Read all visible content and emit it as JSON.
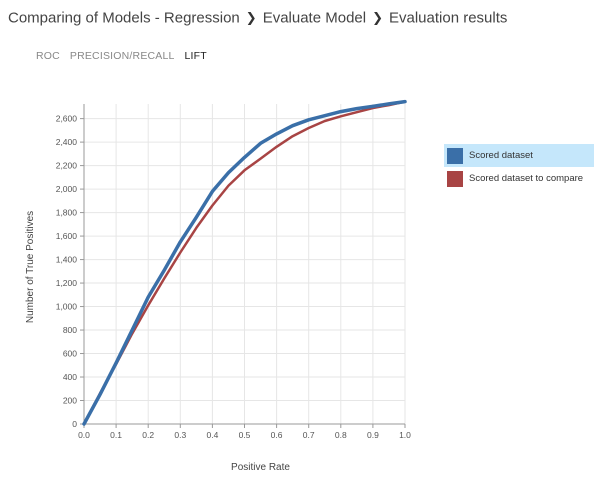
{
  "breadcrumb": {
    "items": [
      "Comparing of Models - Regression",
      "Evaluate Model",
      "Evaluation results"
    ],
    "separator_icon": "chevron-right-icon"
  },
  "tabs": [
    {
      "label": "ROC",
      "active": false
    },
    {
      "label": "PRECISION/RECALL",
      "active": false
    },
    {
      "label": "LIFT",
      "active": true
    }
  ],
  "legend": {
    "items": [
      {
        "label": "Scored dataset",
        "color": "#3a6fa8",
        "selected": true
      },
      {
        "label": "Scored dataset to compare",
        "color": "#a84444",
        "selected": false
      }
    ]
  },
  "chart_data": {
    "type": "line",
    "xlabel": "Positive Rate",
    "ylabel": "Number of True Positives",
    "xlim": [
      0,
      1.0
    ],
    "ylim": [
      0,
      2750
    ],
    "x_ticks": [
      "0.0",
      "0.1",
      "0.2",
      "0.3",
      "0.4",
      "0.5",
      "0.6",
      "0.7",
      "0.8",
      "0.9",
      "1.0"
    ],
    "y_ticks": [
      "0",
      "200",
      "400",
      "600",
      "800",
      "1,000",
      "1,200",
      "1,400",
      "1,600",
      "1,800",
      "2,000",
      "2,200",
      "2,400",
      "2,600"
    ],
    "grid": true,
    "legend_position": "right",
    "series": [
      {
        "name": "Scored dataset",
        "color": "#3a6fa8",
        "x": [
          0,
          0.05,
          0.1,
          0.15,
          0.2,
          0.25,
          0.3,
          0.35,
          0.4,
          0.45,
          0.5,
          0.55,
          0.6,
          0.65,
          0.7,
          0.75,
          0.8,
          0.85,
          0.9,
          0.95,
          1.0
        ],
        "y": [
          0,
          250,
          520,
          800,
          1080,
          1310,
          1550,
          1760,
          1980,
          2140,
          2270,
          2390,
          2470,
          2540,
          2590,
          2625,
          2660,
          2685,
          2705,
          2725,
          2745
        ]
      },
      {
        "name": "Scored dataset to compare",
        "color": "#a84444",
        "x": [
          0,
          0.05,
          0.1,
          0.15,
          0.2,
          0.25,
          0.3,
          0.35,
          0.4,
          0.45,
          0.5,
          0.55,
          0.6,
          0.65,
          0.7,
          0.75,
          0.8,
          0.85,
          0.9,
          0.95,
          1.0
        ],
        "y": [
          0,
          260,
          510,
          770,
          1010,
          1240,
          1460,
          1670,
          1860,
          2030,
          2160,
          2260,
          2360,
          2450,
          2520,
          2580,
          2620,
          2655,
          2690,
          2715,
          2745
        ]
      }
    ]
  }
}
